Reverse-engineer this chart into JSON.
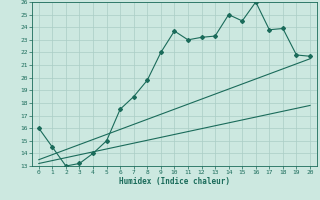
{
  "xlabel": "Humidex (Indice chaleur)",
  "bg_color": "#cce8e0",
  "line_color": "#1a6b5a",
  "grid_color": "#aacec6",
  "xlim": [
    -0.5,
    20.5
  ],
  "ylim": [
    13,
    26
  ],
  "yticks": [
    13,
    14,
    15,
    16,
    17,
    18,
    19,
    20,
    21,
    22,
    23,
    24,
    25,
    26
  ],
  "xticks": [
    0,
    1,
    2,
    3,
    4,
    5,
    6,
    7,
    8,
    9,
    10,
    11,
    12,
    13,
    14,
    15,
    16,
    17,
    18,
    19,
    20
  ],
  "main_line_x": [
    0,
    1,
    2,
    3,
    4,
    5,
    6,
    7,
    8,
    9,
    10,
    11,
    12,
    13,
    14,
    15,
    16,
    17,
    18,
    19,
    20
  ],
  "main_line_y": [
    16,
    14.5,
    13,
    13.2,
    14,
    15,
    17.5,
    18.5,
    19.8,
    22,
    23.7,
    23.0,
    23.2,
    23.3,
    25.0,
    24.5,
    26.0,
    23.8,
    23.9,
    21.8,
    21.7
  ],
  "upper_line_x": [
    0,
    20
  ],
  "upper_line_y": [
    13.5,
    21.5
  ],
  "lower_line_x": [
    0,
    20
  ],
  "lower_line_y": [
    13.2,
    17.8
  ]
}
